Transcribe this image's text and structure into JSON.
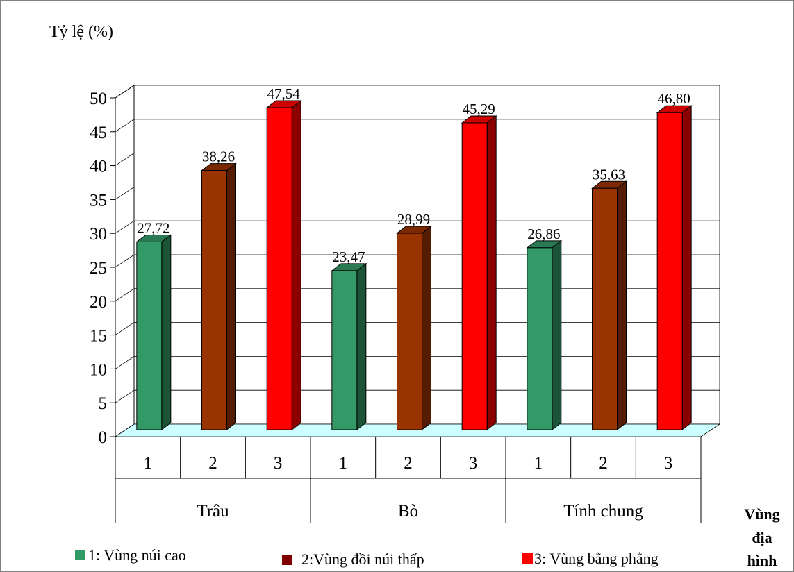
{
  "chart_data": {
    "type": "bar",
    "ylabel": "Tỷ lệ (%)",
    "xlabel": "Vùng địa hình",
    "xlabel_lines": [
      "Vùng",
      "địa",
      "hình"
    ],
    "ylim": [
      0,
      50
    ],
    "yticks": [
      "0",
      "5",
      "10",
      "15",
      "20",
      "25",
      "30",
      "35",
      "40",
      "45",
      "50"
    ],
    "groups": [
      "Trâu",
      "Bò",
      "Tính chung"
    ],
    "sub_categories": [
      "1",
      "2",
      "3"
    ],
    "series": [
      {
        "name": "1: Vùng núi cao",
        "color": "#339966",
        "values": [
          27.72,
          23.47,
          26.86
        ],
        "labels": [
          "27,72",
          "23,47",
          "26,86"
        ]
      },
      {
        "name": "2:Vùng đồi núi thấp",
        "color": "#993300",
        "values": [
          38.26,
          28.99,
          35.63
        ],
        "labels": [
          "38,26",
          "28,99",
          "35,63"
        ]
      },
      {
        "name": "3: Vùng bằng phẳng",
        "color": "#ff0000",
        "values": [
          47.54,
          45.29,
          46.8
        ],
        "labels": [
          "47,54",
          "45,29",
          "46,80"
        ]
      }
    ],
    "legend_colors": [
      "#339966",
      "#800000",
      "#ff0000"
    ],
    "floor_color": "#ccffff",
    "grid": true,
    "legend_position": "bottom"
  }
}
